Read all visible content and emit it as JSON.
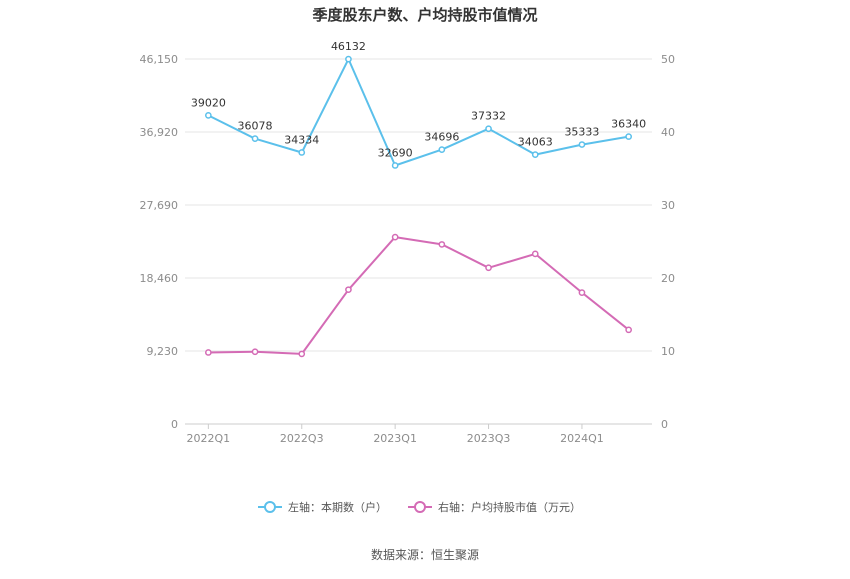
{
  "chart_data": {
    "type": "line",
    "title": "季度股东户数、户均持股市值情况",
    "x": [
      "2022Q1",
      "2022Q2",
      "2022Q3",
      "2022Q4",
      "2023Q1",
      "2023Q2",
      "2023Q3",
      "2023Q4",
      "2024Q1",
      "2024Q2"
    ],
    "x_tick_labels": [
      "2022Q1",
      "2022Q3",
      "2023Q1",
      "2023Q3",
      "2024Q1"
    ],
    "y_left": {
      "ticks": [
        "0",
        "9,230",
        "18,460",
        "27,690",
        "36,920",
        "46,150"
      ],
      "range": [
        0,
        46150
      ]
    },
    "y_right": {
      "ticks": [
        "0",
        "10",
        "20",
        "30",
        "40",
        "50"
      ],
      "range": [
        0,
        50
      ]
    },
    "series": [
      {
        "name": "左轴：本期数（户）",
        "axis": "left",
        "color": "#5bc0eb",
        "values": [
          39020,
          36078,
          34334,
          46132,
          32690,
          34696,
          37332,
          34063,
          35333,
          36340
        ],
        "labels": [
          "39020",
          "36078",
          "34334",
          "46132",
          "32690",
          "34696",
          "37332",
          "34063",
          "35333",
          "36340"
        ]
      },
      {
        "name": "右轴：户均持股市值（万元）",
        "axis": "right",
        "color": "#d46bb5",
        "values": [
          9.8,
          9.9,
          9.6,
          18.4,
          25.6,
          24.6,
          21.4,
          23.3,
          18.0,
          12.9
        ]
      }
    ],
    "grid": true,
    "legend_position": "bottom"
  },
  "source": "数据来源：恒生聚源"
}
